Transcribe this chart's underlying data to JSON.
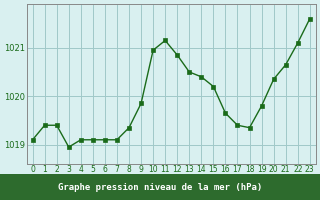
{
  "hours": [
    0,
    1,
    2,
    3,
    4,
    5,
    6,
    7,
    8,
    9,
    10,
    11,
    12,
    13,
    14,
    15,
    16,
    17,
    18,
    19,
    20,
    21,
    22,
    23
  ],
  "pressure": [
    1019.1,
    1019.4,
    1019.4,
    1018.95,
    1019.1,
    1019.1,
    1019.1,
    1019.1,
    1019.35,
    1019.85,
    1020.95,
    1021.15,
    1020.85,
    1020.5,
    1020.4,
    1020.2,
    1019.65,
    1019.4,
    1019.35,
    1019.8,
    1020.35,
    1020.65,
    1021.1,
    1021.6
  ],
  "line_color": "#1a6b1a",
  "marker_color": "#1a6b1a",
  "bg_color": "#d9f0f0",
  "grid_color": "#a0c8c8",
  "xlabel": "Graphe pression niveau de la mer (hPa)",
  "xlabel_color": "white",
  "xlabel_bg": "#2d6b2d",
  "yticks": [
    1019,
    1020,
    1021
  ],
  "ylim": [
    1018.6,
    1021.9
  ],
  "xlim": [
    -0.5,
    23.5
  ]
}
